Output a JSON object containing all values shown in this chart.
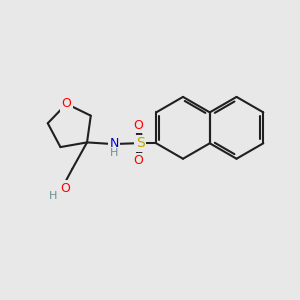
{
  "bg_color": "#e8e8e8",
  "bond_color": "#202020",
  "bond_width": 1.5,
  "atom_colors": {
    "O": "#ff0000",
    "N": "#0000cc",
    "S": "#bbaa00",
    "H": "#6a9090",
    "C": "#202020"
  },
  "font_size": 9,
  "fig_size": [
    3.0,
    3.0
  ],
  "dpi": 100
}
